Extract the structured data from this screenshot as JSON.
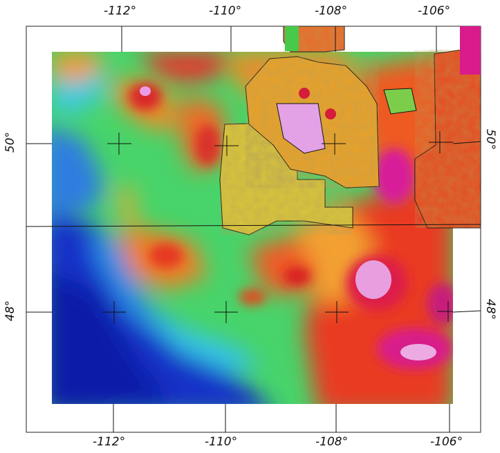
{
  "map": {
    "top_longitude_labels": [
      "-112°",
      "-110°",
      "-108°",
      "-106°"
    ],
    "bottom_longitude_labels": [
      "-112°",
      "-110°",
      "-108°",
      "-106°"
    ],
    "left_latitude_labels": [
      "50°",
      "48°"
    ],
    "right_latitude_labels": [
      "50°",
      "48°"
    ],
    "colors": {
      "low": "#1a2fd0",
      "mid_low": "#35d8e8",
      "mid": "#3fd36a",
      "mid_high": "#f3b61a",
      "high": "#e82020",
      "peak": "#e9a3e8",
      "frame": "#222222"
    }
  }
}
